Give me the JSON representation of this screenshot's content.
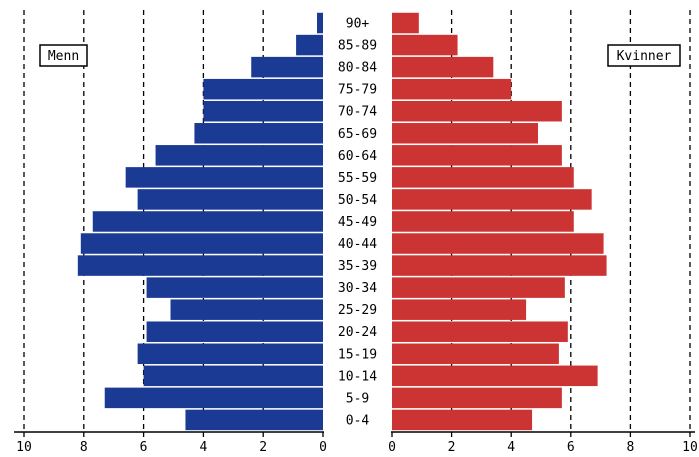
{
  "chart_data": {
    "type": "bar",
    "orientation": "horizontal",
    "layout": "population-pyramid",
    "categories": [
      "0-4",
      "5-9",
      "10-14",
      "15-19",
      "20-24",
      "25-29",
      "30-34",
      "35-39",
      "40-44",
      "45-49",
      "50-54",
      "55-59",
      "60-64",
      "65-69",
      "70-74",
      "75-79",
      "80-84",
      "85-89",
      "90+"
    ],
    "series": [
      {
        "name": "Menn",
        "color": "#1a3a94",
        "values": [
          4.6,
          7.3,
          6.0,
          6.2,
          5.9,
          5.1,
          5.9,
          8.2,
          8.1,
          7.7,
          6.2,
          6.6,
          5.6,
          4.3,
          4.0,
          4.0,
          2.4,
          0.9,
          0.2
        ]
      },
      {
        "name": "Kvinner",
        "color": "#cc3333",
        "values": [
          4.7,
          5.7,
          6.9,
          5.6,
          5.9,
          4.5,
          5.8,
          7.2,
          7.1,
          6.1,
          6.7,
          6.1,
          5.7,
          4.9,
          5.7,
          4.0,
          3.4,
          2.2,
          0.9
        ]
      }
    ],
    "xlim": [
      0,
      10
    ],
    "ticks": [
      "0",
      "2",
      "4",
      "6",
      "8",
      "10"
    ],
    "grid": "vertical dashed",
    "legend": [
      "top-left",
      "top-right"
    ]
  }
}
